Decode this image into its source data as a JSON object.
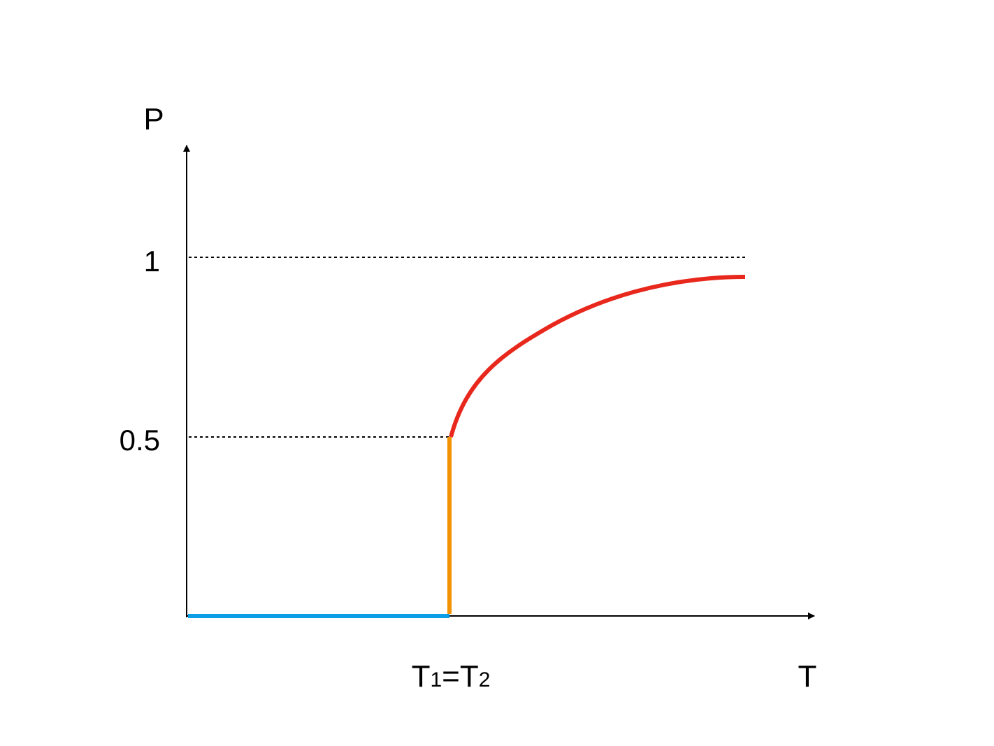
{
  "y_axis_label": "P",
  "x_axis_label": "T",
  "y_tick_labels": [
    "1",
    "0.5"
  ],
  "x_marker_label_parts": [
    "T",
    "1",
    "=T",
    "2"
  ]
}
